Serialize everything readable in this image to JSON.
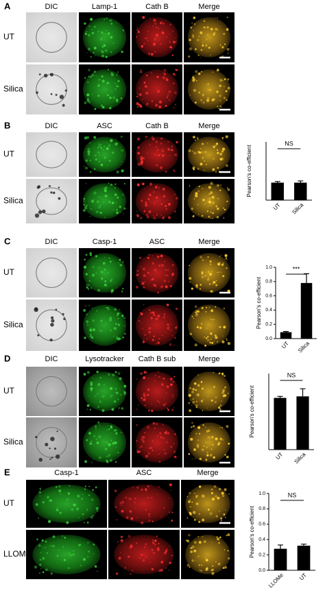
{
  "panels": [
    {
      "letter": "A",
      "columns": [
        "DIC",
        "Lamp-1",
        "Cath B",
        "Merge"
      ],
      "rows": [
        "UT",
        "Silica"
      ]
    },
    {
      "letter": "B",
      "columns": [
        "DIC",
        "ASC",
        "Cath B",
        "Merge"
      ],
      "rows": [
        "UT",
        "Silica"
      ]
    },
    {
      "letter": "C",
      "columns": [
        "DIC",
        "Casp-1",
        "ASC",
        "Merge"
      ],
      "rows": [
        "UT",
        "Silica"
      ]
    },
    {
      "letter": "D",
      "columns": [
        "DIC",
        "Lysotracker",
        "Cath B sub",
        "Merge"
      ],
      "rows": [
        "UT",
        "Silica"
      ]
    },
    {
      "letter": "E",
      "columns": [
        "Casp-1",
        "ASC",
        "Merge"
      ],
      "rows": [
        "UT",
        "LLOMe"
      ]
    }
  ],
  "chart_data": [
    {
      "type": "bar",
      "categories": [
        "UT",
        "Silica"
      ],
      "values": [
        0.3,
        0.3
      ],
      "errors": [
        0.02,
        0.03
      ],
      "color": "#000000",
      "ylim": [
        0,
        1
      ],
      "ylabel": "Pearson's co-efficient",
      "annotation": "NS"
    },
    {
      "type": "bar",
      "categories": [
        "UT",
        "Silica"
      ],
      "values": [
        0.09,
        0.78
      ],
      "errors": [
        0.01,
        0.13
      ],
      "color": "#000000",
      "ylim": [
        0,
        1
      ],
      "yticks": [
        {
          "value": 0,
          "label": "0.0"
        },
        0.2,
        0.4,
        0.6,
        0.8,
        {
          "value": 1,
          "label": "1.0"
        }
      ],
      "ylabel": "Pearson's co-efficient",
      "annotation": "***"
    },
    {
      "type": "bar",
      "categories": [
        "UT",
        "Silica"
      ],
      "values": [
        0.68,
        0.7
      ],
      "errors": [
        0.02,
        0.1
      ],
      "color": "#000000",
      "ylim": [
        0,
        1
      ],
      "ylabel": "Pearson's co-efficient",
      "annotation": "NS"
    },
    {
      "type": "bar",
      "categories": [
        "LLOMe",
        "UT"
      ],
      "values": [
        0.28,
        0.32
      ],
      "errors": [
        0.05,
        0.02
      ],
      "color": "#000000",
      "ylim": [
        0,
        1
      ],
      "yticks": [
        {
          "value": 0,
          "label": "0.0"
        },
        0.2,
        0.4,
        0.6,
        0.8,
        {
          "value": 1,
          "label": "1.0"
        }
      ],
      "ylabel": "Pearson's co-efficient",
      "annotation": "NS"
    }
  ]
}
